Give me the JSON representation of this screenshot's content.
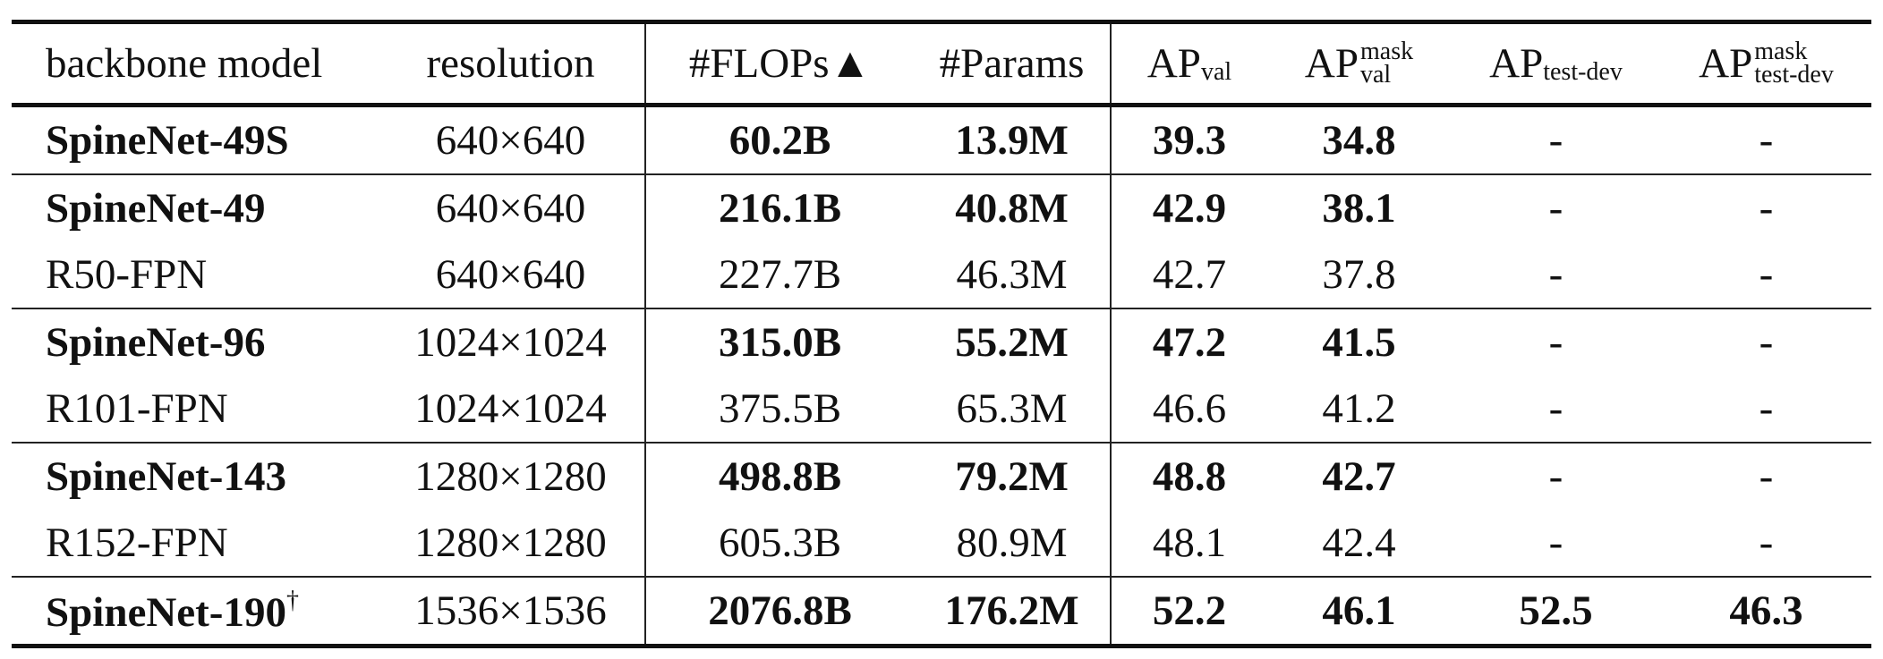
{
  "header": {
    "backbone_model": "backbone model",
    "resolution": "resolution",
    "flops": "#FLOPs▲",
    "params": "#Params",
    "ap_val_main": "AP",
    "ap_val_sub": "val",
    "ap_mask_val_main": "AP",
    "ap_mask_val_sup": "mask",
    "ap_mask_val_sub": "val",
    "ap_testdev_main": "AP",
    "ap_testdev_sub": "test-dev",
    "ap_mask_testdev_main": "AP",
    "ap_mask_testdev_sup": "mask",
    "ap_mask_testdev_sub": "test-dev"
  },
  "rows": [
    {
      "model": "SpineNet-49S",
      "resolution": "640×640",
      "flops": "60.2B",
      "params": "13.9M",
      "ap_val": "39.3",
      "ap_mask_val": "34.8",
      "ap_testdev": "-",
      "ap_mask_testdev": "-"
    },
    {
      "model": "SpineNet-49",
      "resolution": "640×640",
      "flops": "216.1B",
      "params": "40.8M",
      "ap_val": "42.9",
      "ap_mask_val": "38.1",
      "ap_testdev": "-",
      "ap_mask_testdev": "-"
    },
    {
      "model": "R50-FPN",
      "resolution": "640×640",
      "flops": "227.7B",
      "params": "46.3M",
      "ap_val": "42.7",
      "ap_mask_val": "37.8",
      "ap_testdev": "-",
      "ap_mask_testdev": "-"
    },
    {
      "model": "SpineNet-96",
      "resolution": "1024×1024",
      "flops": "315.0B",
      "params": "55.2M",
      "ap_val": "47.2",
      "ap_mask_val": "41.5",
      "ap_testdev": "-",
      "ap_mask_testdev": "-"
    },
    {
      "model": "R101-FPN",
      "resolution": "1024×1024",
      "flops": "375.5B",
      "params": "65.3M",
      "ap_val": "46.6",
      "ap_mask_val": "41.2",
      "ap_testdev": "-",
      "ap_mask_testdev": "-"
    },
    {
      "model": "SpineNet-143",
      "resolution": "1280×1280",
      "flops": "498.8B",
      "params": "79.2M",
      "ap_val": "48.8",
      "ap_mask_val": "42.7",
      "ap_testdev": "-",
      "ap_mask_testdev": "-"
    },
    {
      "model": "R152-FPN",
      "resolution": "1280×1280",
      "flops": "605.3B",
      "params": "80.9M",
      "ap_val": "48.1",
      "ap_mask_val": "42.4",
      "ap_testdev": "-",
      "ap_mask_testdev": "-"
    },
    {
      "model": "SpineNet-190",
      "model_mark": "†",
      "resolution": "1536×1536",
      "flops": "2076.8B",
      "params": "176.2M",
      "ap_val": "52.2",
      "ap_mask_val": "46.1",
      "ap_testdev": "52.5",
      "ap_mask_testdev": "46.3"
    }
  ]
}
